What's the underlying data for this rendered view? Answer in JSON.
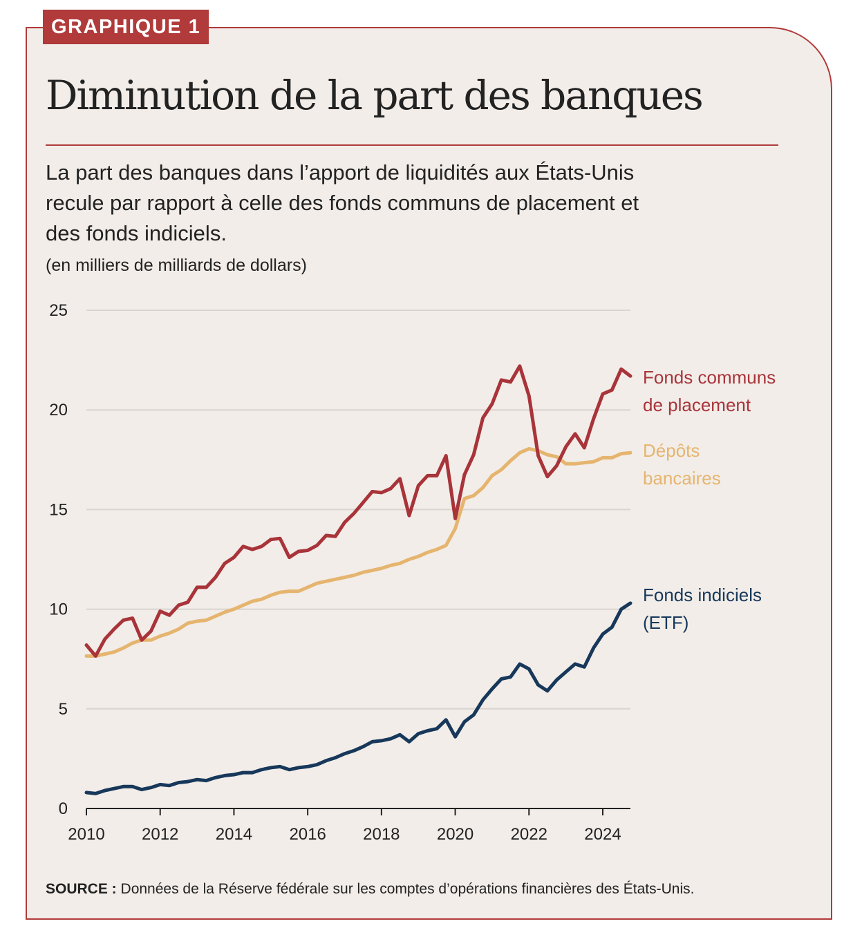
{
  "badge": "GRAPHIQUE 1",
  "title": "Diminution de la part des banques",
  "subtitle": "La part des banques dans l’apport de liquidités aux États-Unis recule par rapport à celle des fonds communs de placement et des fonds indiciels.",
  "units": "(en milliers de milliards de dollars)",
  "source": {
    "label": "SOURCE :",
    "text": " Données de la Réserve fédérale sur les comptes d’opérations financières des États-Unis."
  },
  "colors": {
    "accent": "#b13a3a",
    "funds": "#a8343a",
    "deposits": "#e5b56f",
    "etf": "#17385a",
    "background": "#f2ede9",
    "grid": "#d9d4cf"
  },
  "chart_data": {
    "type": "line",
    "title": "Diminution de la part des banques",
    "xlabel": "",
    "ylabel": "(en milliers de milliards de dollars)",
    "xlim": [
      2010,
      2024.75
    ],
    "ylim": [
      0,
      25
    ],
    "yticks": [
      "0",
      "5",
      "10",
      "15",
      "20",
      "25"
    ],
    "xticks": [
      "2010",
      "2012",
      "2014",
      "2016",
      "2018",
      "2020",
      "2022",
      "2024"
    ],
    "grid": true,
    "x_start": 2010,
    "x_step": 0.25,
    "series": [
      {
        "name": "Fonds communs de placement",
        "label_lines": [
          "Fonds communs",
          "de placement"
        ],
        "color": "#a8343a",
        "values": [
          8.2,
          7.65,
          8.5,
          9.0,
          9.45,
          9.55,
          8.45,
          8.9,
          9.9,
          9.7,
          10.2,
          10.35,
          11.1,
          11.1,
          11.6,
          12.3,
          12.6,
          13.15,
          13.0,
          13.15,
          13.5,
          13.55,
          12.6,
          12.9,
          12.95,
          13.2,
          13.7,
          13.65,
          14.35,
          14.8,
          15.35,
          15.9,
          15.85,
          16.05,
          16.55,
          14.7,
          16.2,
          16.7,
          16.7,
          17.7,
          14.55,
          16.75,
          17.75,
          19.6,
          20.3,
          21.5,
          21.4,
          22.2,
          20.7,
          17.7,
          16.65,
          17.2,
          18.15,
          18.8,
          18.1,
          19.55,
          20.8,
          21.0,
          22.05,
          21.7
        ]
      },
      {
        "name": "Dépôts bancaires",
        "label_lines": [
          "Dépôts",
          "bancaires"
        ],
        "color": "#e5b56f",
        "values": [
          7.65,
          7.65,
          7.75,
          7.85,
          8.05,
          8.3,
          8.45,
          8.45,
          8.65,
          8.8,
          9.0,
          9.3,
          9.4,
          9.45,
          9.65,
          9.85,
          10.0,
          10.2,
          10.4,
          10.5,
          10.7,
          10.85,
          10.9,
          10.9,
          11.1,
          11.3,
          11.4,
          11.5,
          11.6,
          11.7,
          11.85,
          11.95,
          12.05,
          12.2,
          12.3,
          12.5,
          12.65,
          12.85,
          13.0,
          13.2,
          14.05,
          15.55,
          15.7,
          16.1,
          16.7,
          17.0,
          17.45,
          17.85,
          18.05,
          17.95,
          17.75,
          17.65,
          17.3,
          17.3,
          17.35,
          17.4,
          17.6,
          17.6,
          17.8,
          17.85
        ]
      },
      {
        "name": "Fonds indiciels (ETF)",
        "label_lines": [
          "Fonds indiciels",
          "(ETF)"
        ],
        "color": "#17385a",
        "values": [
          0.8,
          0.75,
          0.9,
          1.0,
          1.1,
          1.1,
          0.95,
          1.05,
          1.2,
          1.15,
          1.3,
          1.35,
          1.45,
          1.4,
          1.55,
          1.65,
          1.7,
          1.8,
          1.8,
          1.95,
          2.05,
          2.1,
          1.95,
          2.05,
          2.1,
          2.2,
          2.4,
          2.55,
          2.75,
          2.9,
          3.1,
          3.35,
          3.4,
          3.5,
          3.7,
          3.35,
          3.75,
          3.9,
          4.0,
          4.45,
          3.6,
          4.35,
          4.7,
          5.45,
          6.0,
          6.5,
          6.6,
          7.25,
          7.0,
          6.2,
          5.9,
          6.45,
          6.85,
          7.25,
          7.1,
          8.05,
          8.75,
          9.1,
          10.0,
          10.3
        ]
      }
    ]
  }
}
